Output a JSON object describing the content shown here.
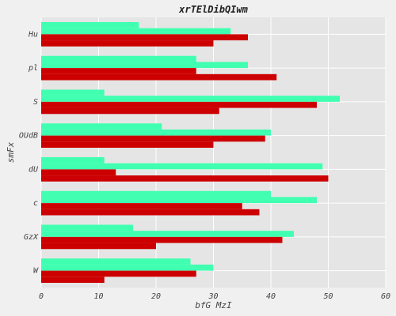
{
  "chart_data": {
    "type": "bar",
    "orientation": "horizontal",
    "title": "xrTElDibQIwm",
    "xlabel": "bfG  MzI",
    "ylabel": "smFx",
    "xlim": [
      0,
      60
    ],
    "x_ticks": [
      "0",
      "10",
      "20",
      "30",
      "40",
      "50",
      "60"
    ],
    "grid": true,
    "categories": [
      "Hu",
      "pl",
      "S",
      "OUdB",
      "dU",
      "c",
      "GzX",
      "W"
    ],
    "series": [
      {
        "color": "#40ffb0",
        "values": [
          17,
          27,
          11,
          21,
          11,
          40,
          16,
          26
        ]
      },
      {
        "color": "#40ffb0",
        "values": [
          33,
          36,
          52,
          40,
          49,
          48,
          44,
          30
        ]
      },
      {
        "color": "#cc0000",
        "values": [
          36,
          27,
          48,
          39,
          13,
          35,
          42,
          27
        ]
      },
      {
        "color": "#cc0000",
        "values": [
          30,
          41,
          31,
          30,
          50,
          38,
          20,
          11
        ]
      }
    ]
  },
  "colors": {
    "plot_background": "#e5e5e5",
    "page_background": "#f0f0f0",
    "grid": "#ffffff"
  }
}
